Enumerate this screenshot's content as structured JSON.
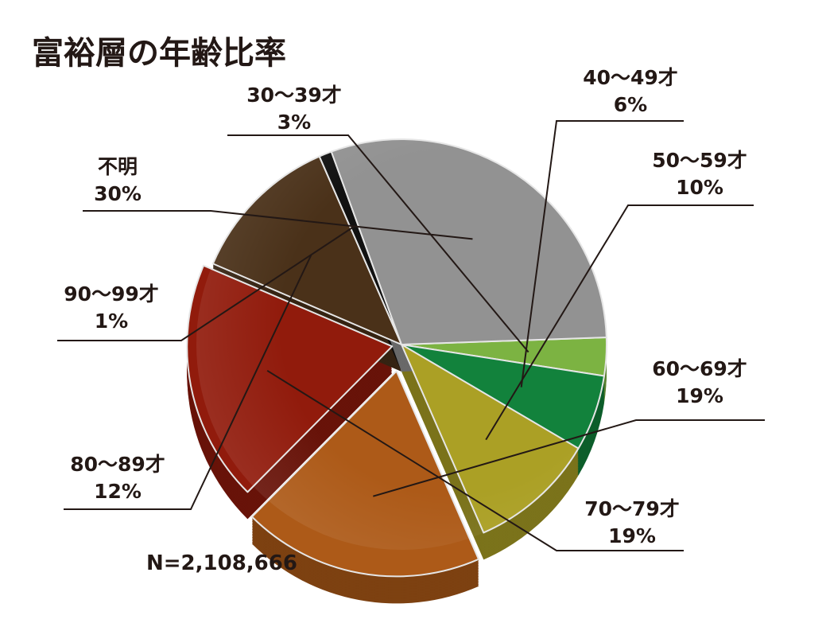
{
  "chart_data": {
    "type": "pie",
    "title": "富裕層の年齢比率",
    "note": "N=2,108,666",
    "slices": [
      {
        "label": "30～39才",
        "value": 3,
        "value_label": "3%",
        "color": "#7cb342"
      },
      {
        "label": "40～49才",
        "value": 6,
        "value_label": "6%",
        "color": "#12823c"
      },
      {
        "label": "50～59才",
        "value": 10,
        "value_label": "10%",
        "color": "#aba025"
      },
      {
        "label": "60～69才",
        "value": 19,
        "value_label": "19%",
        "color": "#ad5a18"
      },
      {
        "label": "70～79才",
        "value": 19,
        "value_label": "19%",
        "color": "#911b0c"
      },
      {
        "label": "80～89才",
        "value": 12,
        "value_label": "12%",
        "color": "#4a3119"
      },
      {
        "label": "90～99才",
        "value": 1,
        "value_label": "1%",
        "color": "#111111"
      },
      {
        "label": "不明",
        "value": 30,
        "value_label": "30%",
        "color": "#929292"
      }
    ]
  }
}
